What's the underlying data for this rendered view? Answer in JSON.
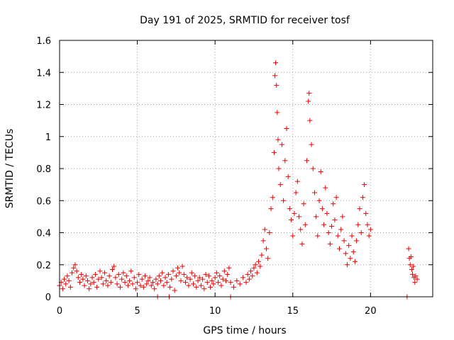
{
  "chart_data": {
    "type": "scatter",
    "title": "Day 191 of 2025, SRMTID for receiver tosf",
    "xlabel": "GPS time / hours",
    "ylabel": "SRMTID / TECUs",
    "xlim": [
      0,
      24
    ],
    "ylim": [
      0,
      1.6
    ],
    "grid": true,
    "marker": "plus",
    "color": "#ee0000",
    "xticks": [
      0,
      5,
      10,
      15,
      20
    ],
    "xtick_labels": [
      "0",
      "5",
      "10",
      "15",
      "20"
    ],
    "yticks": [
      0,
      0.2,
      0.4,
      0.6,
      0.8,
      1.0,
      1.2,
      1.4,
      1.6
    ],
    "ytick_labels": [
      "0",
      "0.2",
      "0.4",
      "0.6",
      "0.8",
      "1",
      "1.2",
      "1.4",
      "1.6"
    ],
    "series": [
      {
        "name": "SRMTID",
        "points": [
          [
            0.0,
            0.07
          ],
          [
            0.1,
            0.09
          ],
          [
            0.2,
            0.05
          ],
          [
            0.3,
            0.11
          ],
          [
            0.4,
            0.08
          ],
          [
            0.5,
            0.13
          ],
          [
            0.6,
            0.1
          ],
          [
            0.7,
            0.06
          ],
          [
            0.8,
            0.15
          ],
          [
            0.9,
            0.18
          ],
          [
            1.0,
            0.2
          ],
          [
            1.1,
            0.16
          ],
          [
            1.2,
            0.12
          ],
          [
            1.3,
            0.09
          ],
          [
            1.4,
            0.14
          ],
          [
            1.5,
            0.11
          ],
          [
            1.6,
            0.07
          ],
          [
            1.7,
            0.13
          ],
          [
            1.8,
            0.1
          ],
          [
            1.9,
            0.05
          ],
          [
            2.0,
            0.08
          ],
          [
            2.1,
            0.12
          ],
          [
            2.2,
            0.09
          ],
          [
            2.3,
            0.14
          ],
          [
            2.4,
            0.06
          ],
          [
            2.5,
            0.11
          ],
          [
            2.6,
            0.16
          ],
          [
            2.7,
            0.12
          ],
          [
            2.8,
            0.08
          ],
          [
            2.9,
            0.15
          ],
          [
            3.0,
            0.1
          ],
          [
            3.1,
            0.07
          ],
          [
            3.2,
            0.13
          ],
          [
            3.3,
            0.09
          ],
          [
            3.4,
            0.17
          ],
          [
            3.5,
            0.19
          ],
          [
            3.6,
            0.12
          ],
          [
            3.7,
            0.08
          ],
          [
            3.8,
            0.14
          ],
          [
            3.9,
            0.06
          ],
          [
            4.0,
            0.11
          ],
          [
            4.1,
            0.15
          ],
          [
            4.2,
            0.09
          ],
          [
            4.3,
            0.13
          ],
          [
            4.4,
            0.07
          ],
          [
            4.5,
            0.1
          ],
          [
            4.6,
            0.16
          ],
          [
            4.7,
            0.08
          ],
          [
            4.8,
            0.12
          ],
          [
            4.9,
            0.05
          ],
          [
            5.0,
            0.09
          ],
          [
            5.1,
            0.14
          ],
          [
            5.2,
            0.07
          ],
          [
            5.3,
            0.11
          ],
          [
            5.4,
            0.06
          ],
          [
            5.5,
            0.13
          ],
          [
            5.6,
            0.08
          ],
          [
            5.7,
            0.1
          ],
          [
            5.8,
            0.12
          ],
          [
            5.9,
            0.07
          ],
          [
            6.0,
            0.09
          ],
          [
            6.1,
            0.05
          ],
          [
            6.2,
            0.11
          ],
          [
            6.3,
            0.08
          ],
          [
            6.4,
            0.13
          ],
          [
            6.5,
            0.1
          ],
          [
            6.6,
            0.15
          ],
          [
            6.7,
            0.07
          ],
          [
            6.8,
            0.12
          ],
          [
            6.9,
            0.09
          ],
          [
            7.0,
            0.14
          ],
          [
            7.1,
            0.06
          ],
          [
            7.2,
            0.11
          ],
          [
            7.3,
            0.16
          ],
          [
            7.4,
            0.04
          ],
          [
            7.5,
            0.13
          ],
          [
            7.6,
            0.18
          ],
          [
            7.7,
            0.15
          ],
          [
            7.8,
            0.1
          ],
          [
            7.9,
            0.19
          ],
          [
            8.0,
            0.14
          ],
          [
            8.1,
            0.09
          ],
          [
            8.2,
            0.12
          ],
          [
            8.3,
            0.07
          ],
          [
            8.4,
            0.11
          ],
          [
            8.5,
            0.15
          ],
          [
            8.6,
            0.08
          ],
          [
            8.7,
            0.13
          ],
          [
            8.8,
            0.06
          ],
          [
            8.9,
            0.1
          ],
          [
            9.0,
            0.12
          ],
          [
            9.1,
            0.07
          ],
          [
            9.2,
            0.11
          ],
          [
            9.3,
            0.05
          ],
          [
            9.4,
            0.14
          ],
          [
            9.5,
            0.09
          ],
          [
            9.6,
            0.13
          ],
          [
            9.7,
            0.06
          ],
          [
            9.8,
            0.1
          ],
          [
            9.9,
            0.08
          ],
          [
            10.0,
            0.12
          ],
          [
            10.1,
            0.15
          ],
          [
            10.2,
            0.09
          ],
          [
            10.3,
            0.13
          ],
          [
            10.4,
            0.07
          ],
          [
            10.5,
            0.11
          ],
          [
            10.6,
            0.16
          ],
          [
            10.7,
            0.1
          ],
          [
            10.8,
            0.14
          ],
          [
            10.9,
            0.18
          ],
          [
            11.0,
            0.09
          ],
          [
            11.2,
            0.06
          ],
          [
            11.4,
            0.1
          ],
          [
            11.6,
            0.08
          ],
          [
            11.8,
            0.12
          ],
          [
            12.0,
            0.09
          ],
          [
            12.1,
            0.14
          ],
          [
            12.2,
            0.11
          ],
          [
            12.3,
            0.16
          ],
          [
            12.4,
            0.13
          ],
          [
            12.5,
            0.18
          ],
          [
            12.6,
            0.2
          ],
          [
            12.7,
            0.15
          ],
          [
            12.8,
            0.22
          ],
          [
            12.9,
            0.19
          ],
          [
            13.0,
            0.26
          ],
          [
            13.1,
            0.35
          ],
          [
            13.2,
            0.42
          ],
          [
            13.3,
            0.3
          ],
          [
            13.4,
            0.24
          ],
          [
            13.5,
            0.4
          ],
          [
            13.6,
            0.55
          ],
          [
            13.7,
            0.62
          ],
          [
            13.8,
            0.9
          ],
          [
            13.85,
            1.38
          ],
          [
            13.9,
            1.46
          ],
          [
            13.95,
            1.32
          ],
          [
            14.0,
            1.15
          ],
          [
            14.05,
            0.98
          ],
          [
            14.1,
            0.8
          ],
          [
            14.2,
            0.7
          ],
          [
            14.3,
            0.95
          ],
          [
            14.4,
            0.6
          ],
          [
            14.5,
            0.85
          ],
          [
            14.6,
            1.05
          ],
          [
            14.7,
            0.75
          ],
          [
            14.8,
            0.55
          ],
          [
            14.9,
            0.48
          ],
          [
            15.0,
            0.38
          ],
          [
            15.1,
            0.52
          ],
          [
            15.2,
            0.65
          ],
          [
            15.3,
            0.72
          ],
          [
            15.4,
            0.5
          ],
          [
            15.5,
            0.42
          ],
          [
            15.6,
            0.33
          ],
          [
            15.7,
            0.58
          ],
          [
            15.8,
            0.45
          ],
          [
            15.9,
            0.85
          ],
          [
            16.0,
            1.22
          ],
          [
            16.05,
            1.27
          ],
          [
            16.1,
            1.1
          ],
          [
            16.2,
            0.95
          ],
          [
            16.3,
            0.8
          ],
          [
            16.4,
            0.65
          ],
          [
            16.5,
            0.5
          ],
          [
            16.6,
            0.38
          ],
          [
            16.7,
            0.6
          ],
          [
            16.8,
            0.78
          ],
          [
            16.9,
            0.55
          ],
          [
            17.0,
            0.45
          ],
          [
            17.1,
            0.68
          ],
          [
            17.2,
            0.52
          ],
          [
            17.3,
            0.4
          ],
          [
            17.4,
            0.33
          ],
          [
            17.5,
            0.44
          ],
          [
            17.6,
            0.58
          ],
          [
            17.7,
            0.48
          ],
          [
            17.8,
            0.62
          ],
          [
            17.9,
            0.38
          ],
          [
            18.0,
            0.3
          ],
          [
            18.1,
            0.42
          ],
          [
            18.2,
            0.5
          ],
          [
            18.3,
            0.35
          ],
          [
            18.4,
            0.27
          ],
          [
            18.5,
            0.2
          ],
          [
            18.6,
            0.32
          ],
          [
            18.7,
            0.24
          ],
          [
            18.8,
            0.38
          ],
          [
            18.9,
            0.28
          ],
          [
            19.0,
            0.22
          ],
          [
            19.1,
            0.35
          ],
          [
            19.2,
            0.45
          ],
          [
            19.3,
            0.55
          ],
          [
            19.4,
            0.4
          ],
          [
            19.5,
            0.62
          ],
          [
            19.6,
            0.7
          ],
          [
            19.7,
            0.52
          ],
          [
            19.8,
            0.45
          ],
          [
            19.9,
            0.38
          ],
          [
            20.0,
            0.42
          ],
          [
            22.35,
            0.0
          ],
          [
            22.45,
            0.3
          ],
          [
            22.5,
            0.24
          ],
          [
            22.55,
            0.2
          ],
          [
            22.6,
            0.25
          ],
          [
            22.65,
            0.17
          ],
          [
            22.7,
            0.14
          ],
          [
            22.75,
            0.19
          ],
          [
            22.8,
            0.12
          ],
          [
            22.85,
            0.09
          ],
          [
            22.9,
            0.13
          ],
          [
            23.0,
            0.11
          ],
          [
            6.3,
            0.0
          ],
          [
            7.05,
            0.0
          ],
          [
            11.0,
            0.0
          ]
        ]
      }
    ]
  }
}
